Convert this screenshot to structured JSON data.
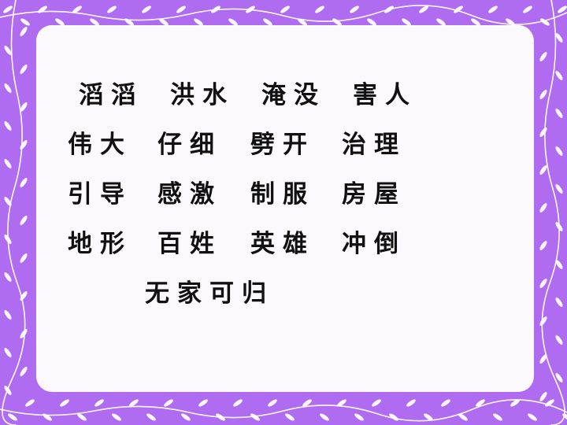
{
  "slide": {
    "background_color": "#b06cf0",
    "panel_color": "#fbf9fd",
    "decoration": "white-vine-leaf-border"
  },
  "vocabulary": {
    "rows": [
      [
        "滔滔",
        "洪水",
        "淹没",
        "害人"
      ],
      [
        "伟大",
        "仔细",
        "劈开",
        "治理"
      ],
      [
        "引导",
        "感激",
        "制服",
        "房屋"
      ],
      [
        "地形",
        "百姓",
        "英雄",
        "冲倒"
      ],
      [
        "无家可归"
      ]
    ]
  }
}
